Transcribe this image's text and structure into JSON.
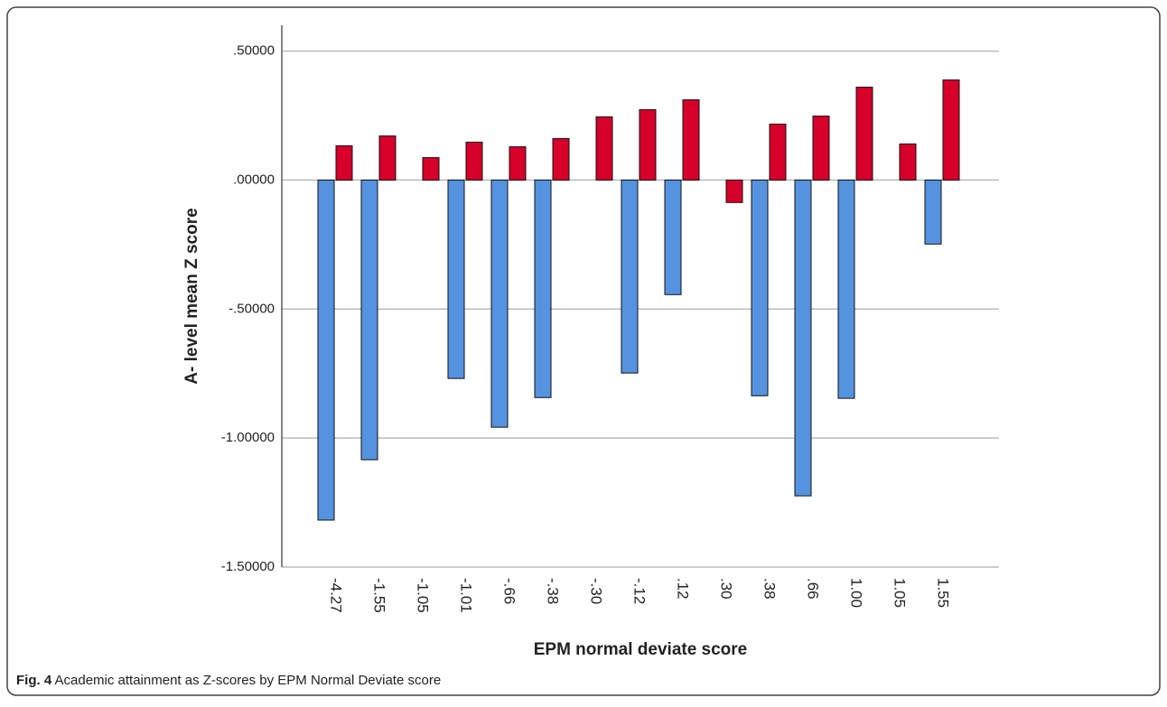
{
  "chart_data": {
    "type": "bar",
    "x_label": "EPM normal deviate score",
    "y_label": "A- level mean Z score",
    "categories": [
      "-4.27",
      "-1.55",
      "-1.05",
      "-1.01",
      "-.66",
      "-.38",
      "-.30",
      "-.12",
      ".12",
      ".30",
      ".38",
      ".66",
      "1.00",
      "1.05",
      "1.55"
    ],
    "series": [
      {
        "color": "#5592e0",
        "values": [
          -1.318,
          -1.084,
          null,
          -0.769,
          -0.958,
          -0.843,
          null,
          -0.748,
          -0.444,
          null,
          -0.836,
          -1.224,
          -0.846,
          null,
          -0.248
        ]
      },
      {
        "color": "#d6002a",
        "values": [
          0.133,
          0.171,
          0.087,
          0.147,
          0.129,
          0.161,
          0.245,
          0.273,
          0.311,
          -0.087,
          0.217,
          0.248,
          0.36,
          0.14,
          0.388
        ]
      }
    ],
    "ylim": [
      -1.5,
      0.6
    ],
    "yticks": [
      {
        "value": 0.5,
        "label": ".50000"
      },
      {
        "value": 0,
        "label": ".00000"
      },
      {
        "value": -0.5,
        "label": "-.50000"
      },
      {
        "value": -1,
        "label": "-1.00000"
      },
      {
        "value": -1.5,
        "label": "-1.50000"
      }
    ],
    "grid": true
  },
  "caption": {
    "label": "Fig. 4",
    "text": "Academic attainment as Z-scores by EPM Normal Deviate score"
  }
}
